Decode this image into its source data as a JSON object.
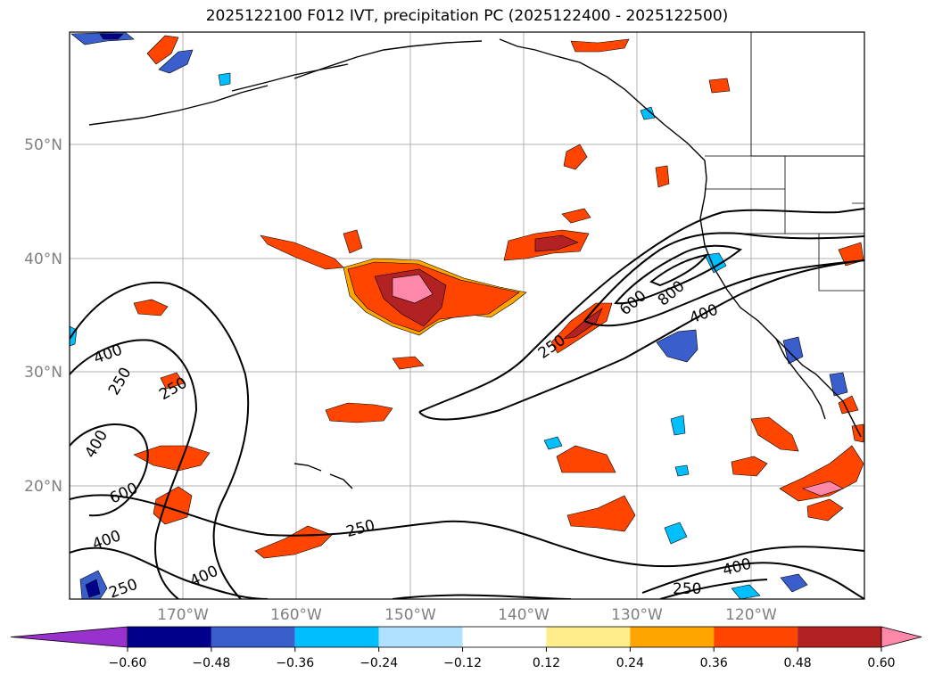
{
  "title": "2025122100 F012 IVT, precipitation PC (2025122400 - 2025122500)",
  "map": {
    "lat_labels": [
      "50°N",
      "40°N",
      "30°N",
      "20°N"
    ],
    "lon_labels": [
      "170°W",
      "160°W",
      "150°W",
      "140°W",
      "130°W",
      "120°W"
    ],
    "ivt_contour_labels": [
      "250",
      "400",
      "600",
      "800"
    ],
    "contour_annotations": [
      {
        "text": "400"
      },
      {
        "text": "250"
      },
      {
        "text": "250"
      },
      {
        "text": "400"
      },
      {
        "text": "600"
      },
      {
        "text": "400"
      },
      {
        "text": "250"
      },
      {
        "text": "400"
      },
      {
        "text": "250"
      },
      {
        "text": "250"
      },
      {
        "text": "600"
      },
      {
        "text": "800"
      },
      {
        "text": "400"
      },
      {
        "text": "400"
      },
      {
        "text": "250"
      }
    ]
  },
  "colorbar": {
    "tick_labels": [
      "−0.60",
      "−0.48",
      "−0.36",
      "−0.24",
      "−0.12",
      "0.12",
      "0.24",
      "0.36",
      "0.48",
      "0.60"
    ],
    "colors": [
      "#9932cc",
      "#00008b",
      "#3a5fcd",
      "#00bfff",
      "#b0e2ff",
      "#ffffff",
      "#ffec8b",
      "#ffa500",
      "#ff4500",
      "#b22222",
      "#ff88aa"
    ],
    "extend": "both"
  }
}
